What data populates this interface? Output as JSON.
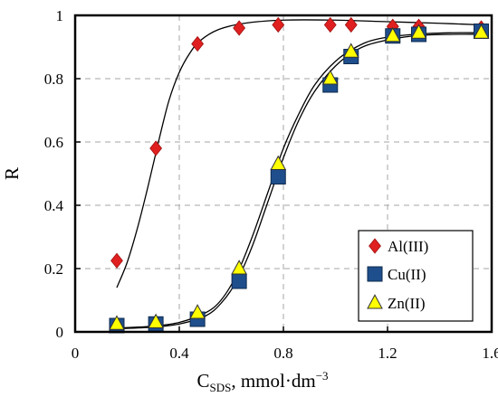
{
  "chart_data": {
    "type": "scatter",
    "ylabel": "R",
    "xlabel_main": "C",
    "xlabel_sub": "SDS",
    "xlabel_rest": ", mmol·dm",
    "xlabel_sup": "−3",
    "xlim": [
      0,
      1.6
    ],
    "ylim": [
      0,
      1
    ],
    "xticks": [
      0,
      0.4,
      0.8,
      1.2,
      1.6
    ],
    "xtick_labels": [
      "0",
      "0.4",
      "0.8",
      "1.2",
      "1.6"
    ],
    "yticks": [
      0,
      0.2,
      0.4,
      0.6,
      0.8,
      1
    ],
    "ytick_labels": [
      "0",
      "0.2",
      "0.4",
      "0.6",
      "0.8",
      "1"
    ],
    "grid": true,
    "legend_position": "bottom-right",
    "series": [
      {
        "name": "Al(III)",
        "marker": "diamond",
        "color": "#e02020",
        "x": [
          0.16,
          0.31,
          0.47,
          0.63,
          0.78,
          0.98,
          1.06,
          1.22,
          1.32,
          1.56
        ],
        "y": [
          0.225,
          0.58,
          0.91,
          0.96,
          0.97,
          0.97,
          0.97,
          0.965,
          0.965,
          0.96
        ],
        "fit": [
          [
            0.16,
            0.14
          ],
          [
            0.2,
            0.22
          ],
          [
            0.24,
            0.33
          ],
          [
            0.28,
            0.46
          ],
          [
            0.32,
            0.6
          ],
          [
            0.36,
            0.73
          ],
          [
            0.4,
            0.82
          ],
          [
            0.44,
            0.88
          ],
          [
            0.48,
            0.92
          ],
          [
            0.55,
            0.955
          ],
          [
            0.65,
            0.975
          ],
          [
            0.8,
            0.985
          ],
          [
            1.0,
            0.985
          ],
          [
            1.2,
            0.98
          ],
          [
            1.4,
            0.975
          ],
          [
            1.56,
            0.97
          ]
        ]
      },
      {
        "name": "Cu(II)",
        "marker": "square",
        "color": "#1f4e8c",
        "x": [
          0.16,
          0.31,
          0.47,
          0.63,
          0.78,
          0.98,
          1.06,
          1.22,
          1.32,
          1.56
        ],
        "y": [
          0.02,
          0.025,
          0.04,
          0.16,
          0.49,
          0.78,
          0.87,
          0.935,
          0.94,
          0.95
        ],
        "fit": [
          [
            0.16,
            0.01
          ],
          [
            0.3,
            0.015
          ],
          [
            0.4,
            0.025
          ],
          [
            0.5,
            0.05
          ],
          [
            0.56,
            0.09
          ],
          [
            0.62,
            0.16
          ],
          [
            0.68,
            0.27
          ],
          [
            0.74,
            0.41
          ],
          [
            0.8,
            0.55
          ],
          [
            0.86,
            0.67
          ],
          [
            0.92,
            0.76
          ],
          [
            1.0,
            0.84
          ],
          [
            1.08,
            0.89
          ],
          [
            1.16,
            0.915
          ],
          [
            1.3,
            0.935
          ],
          [
            1.45,
            0.94
          ],
          [
            1.56,
            0.94
          ]
        ]
      },
      {
        "name": "Zn(II)",
        "marker": "triangle",
        "color": "#ffff00",
        "x": [
          0.16,
          0.31,
          0.47,
          0.63,
          0.78,
          0.98,
          1.06,
          1.22,
          1.32,
          1.56
        ],
        "y": [
          0.025,
          0.03,
          0.06,
          0.2,
          0.53,
          0.8,
          0.885,
          0.935,
          0.945,
          0.945
        ],
        "fit": [
          [
            0.16,
            0.012
          ],
          [
            0.3,
            0.018
          ],
          [
            0.4,
            0.03
          ],
          [
            0.5,
            0.06
          ],
          [
            0.56,
            0.1
          ],
          [
            0.62,
            0.18
          ],
          [
            0.68,
            0.3
          ],
          [
            0.74,
            0.44
          ],
          [
            0.8,
            0.58
          ],
          [
            0.86,
            0.69
          ],
          [
            0.92,
            0.78
          ],
          [
            1.0,
            0.855
          ],
          [
            1.08,
            0.9
          ],
          [
            1.16,
            0.925
          ],
          [
            1.3,
            0.94
          ],
          [
            1.45,
            0.945
          ],
          [
            1.56,
            0.945
          ]
        ]
      }
    ]
  }
}
